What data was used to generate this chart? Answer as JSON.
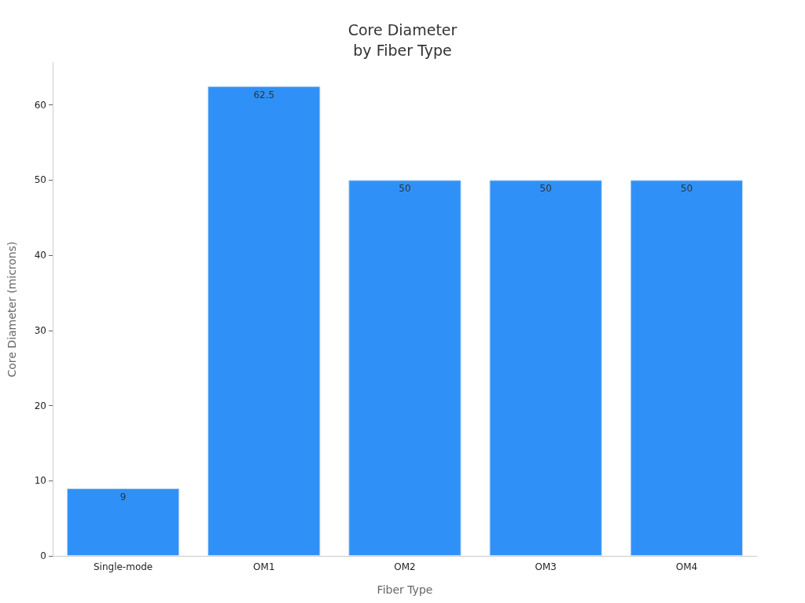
{
  "chart_data": {
    "type": "bar",
    "title": "Core Diameter\nby Fiber Type",
    "xlabel": "Fiber Type",
    "ylabel": "Core Diameter (microns)",
    "categories": [
      "Single-mode",
      "OM1",
      "OM2",
      "OM3",
      "OM4"
    ],
    "values": [
      9,
      62.5,
      50,
      50,
      50
    ],
    "color": "#2f91f7",
    "ylim": [
      0,
      65.6
    ],
    "yticks": [
      0,
      10,
      20,
      30,
      40,
      50,
      60
    ],
    "grid": false,
    "data_labels": true
  }
}
